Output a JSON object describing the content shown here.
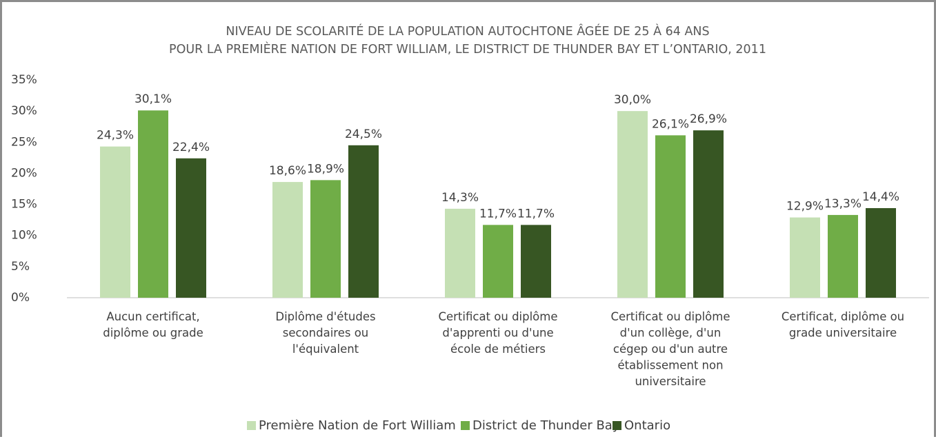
{
  "chart_data": {
    "type": "bar",
    "title": "NIVEAU DE SCOLARITÉ DE LA POPULATION AUTOCHTONE ÂGÉE DE 25 À 64 ANS\nPOUR LA PREMIÈRE NATION DE FORT WILLIAM, LE DISTRICT DE THUNDER BAY ET L’ONTARIO, 2011",
    "categories": [
      "Aucun certificat,\ndiplôme ou grade",
      "Diplôme d'études\nsecondaires ou\nl'équivalent",
      "Certificat ou diplôme\nd'apprenti ou d'une\nécole de métiers",
      "Certificat ou diplôme\nd'un collège, d'un\ncégep ou d'un autre\nétablissement non\nuniversitaire",
      "Certificat, diplôme ou\ngrade universitaire"
    ],
    "series": [
      {
        "name": "Première Nation de Fort William",
        "color": "#c5e0b4",
        "values": [
          24.3,
          18.6,
          14.3,
          30.0,
          12.9
        ],
        "value_labels": [
          "24,3%",
          "18,6%",
          "14,3%",
          "30,0%",
          "12,9%"
        ]
      },
      {
        "name": "District de Thunder Bay",
        "color": "#70ad47",
        "values": [
          30.1,
          18.9,
          11.7,
          26.1,
          13.3
        ],
        "value_labels": [
          "30,1%",
          "18,9%",
          "11,7%",
          "26,1%",
          "13,3%"
        ]
      },
      {
        "name": "Ontario",
        "color": "#375623",
        "values": [
          22.4,
          24.5,
          11.7,
          26.9,
          14.4
        ],
        "value_labels": [
          "22,4%",
          "24,5%",
          "11,7%",
          "26,9%",
          "14,4%"
        ]
      }
    ],
    "ylim": [
      0,
      35
    ],
    "yticks": [
      {
        "value": 0,
        "label": "0%"
      },
      {
        "value": 5,
        "label": "5%"
      },
      {
        "value": 10,
        "label": "10%"
      },
      {
        "value": 15,
        "label": "15%"
      },
      {
        "value": 20,
        "label": "20%"
      },
      {
        "value": 25,
        "label": "25%"
      },
      {
        "value": 30,
        "label": "30%"
      },
      {
        "value": 35,
        "label": "35%"
      }
    ],
    "legend": "bottom"
  }
}
